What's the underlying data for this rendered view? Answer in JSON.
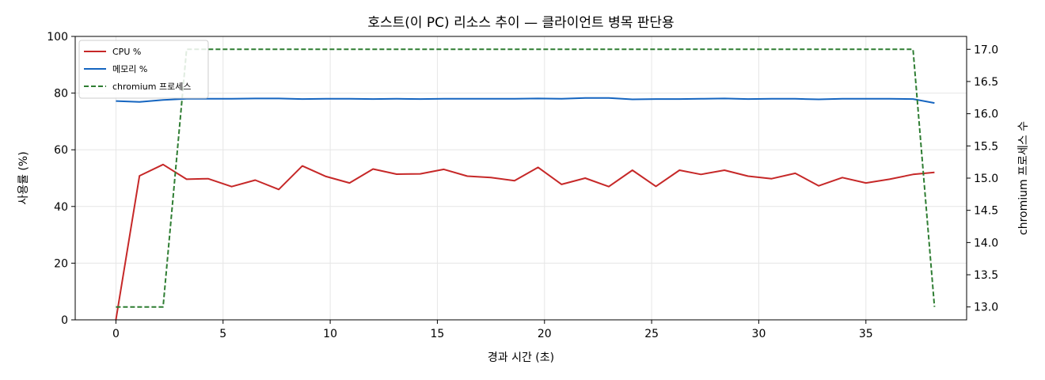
{
  "chart_data": {
    "type": "line",
    "title": "호스트(이 PC) 리소스 추이 — 클라이언트 병목 판단용",
    "xlabel": "경과 시간 (초)",
    "ylabel": "사용률 (%)",
    "y2label": "chromium 프로세스 수",
    "xlim": [
      -1.9,
      39.7
    ],
    "ylim": [
      0,
      100
    ],
    "y2lim": [
      12.8,
      17.2
    ],
    "xticks": [
      0,
      5,
      10,
      15,
      20,
      25,
      30,
      35
    ],
    "yticks": [
      0,
      20,
      40,
      60,
      80,
      100
    ],
    "y2ticks": [
      13.0,
      13.5,
      14.0,
      14.5,
      15.0,
      15.5,
      16.0,
      16.5,
      17.0
    ],
    "grid": true,
    "legend_position": "top-left",
    "x": [
      0,
      1.1,
      2.2,
      3.3,
      4.3,
      5.4,
      6.5,
      7.6,
      8.7,
      9.8,
      10.9,
      12.0,
      13.1,
      14.2,
      15.3,
      16.4,
      17.5,
      18.6,
      19.7,
      20.8,
      21.9,
      23.0,
      24.1,
      25.2,
      26.3,
      27.3,
      28.4,
      29.5,
      30.6,
      31.7,
      32.8,
      33.9,
      35.0,
      36.1,
      37.2,
      38.2
    ],
    "series": [
      {
        "name": "CPU %",
        "axis": "left",
        "color": "#c62828",
        "dash": "solid",
        "values": [
          0,
          50.8,
          54.8,
          49.6,
          49.8,
          47.0,
          49.3,
          46.0,
          54.3,
          50.6,
          48.3,
          53.2,
          51.4,
          51.5,
          53.1,
          50.7,
          50.2,
          49.1,
          53.8,
          47.8,
          50.0,
          47.0,
          52.8,
          47.1,
          52.8,
          51.3,
          52.8,
          50.7,
          49.8,
          51.7,
          47.3,
          50.2,
          48.3,
          49.6,
          51.3,
          52.0
        ]
      },
      {
        "name": "메모리 %",
        "axis": "left",
        "color": "#1565c0",
        "dash": "solid",
        "values": [
          77.2,
          76.9,
          77.6,
          78.0,
          78.0,
          78.0,
          78.1,
          78.1,
          77.9,
          78.0,
          78.0,
          77.9,
          78.0,
          77.9,
          78.0,
          78.0,
          78.0,
          78.0,
          78.1,
          78.0,
          78.3,
          78.3,
          77.8,
          77.9,
          77.9,
          78.0,
          78.1,
          77.9,
          78.0,
          78.0,
          77.8,
          78.0,
          78.0,
          78.0,
          77.9,
          76.5
        ]
      },
      {
        "name": "chromium 프로세스",
        "axis": "right",
        "color": "#2e7d32",
        "dash": "dashed",
        "values": [
          13,
          13,
          13,
          17,
          17,
          17,
          17,
          17,
          17,
          17,
          17,
          17,
          17,
          17,
          17,
          17,
          17,
          17,
          17,
          17,
          17,
          17,
          17,
          17,
          17,
          17,
          17,
          17,
          17,
          17,
          17,
          17,
          17,
          17,
          17,
          13
        ]
      }
    ]
  }
}
